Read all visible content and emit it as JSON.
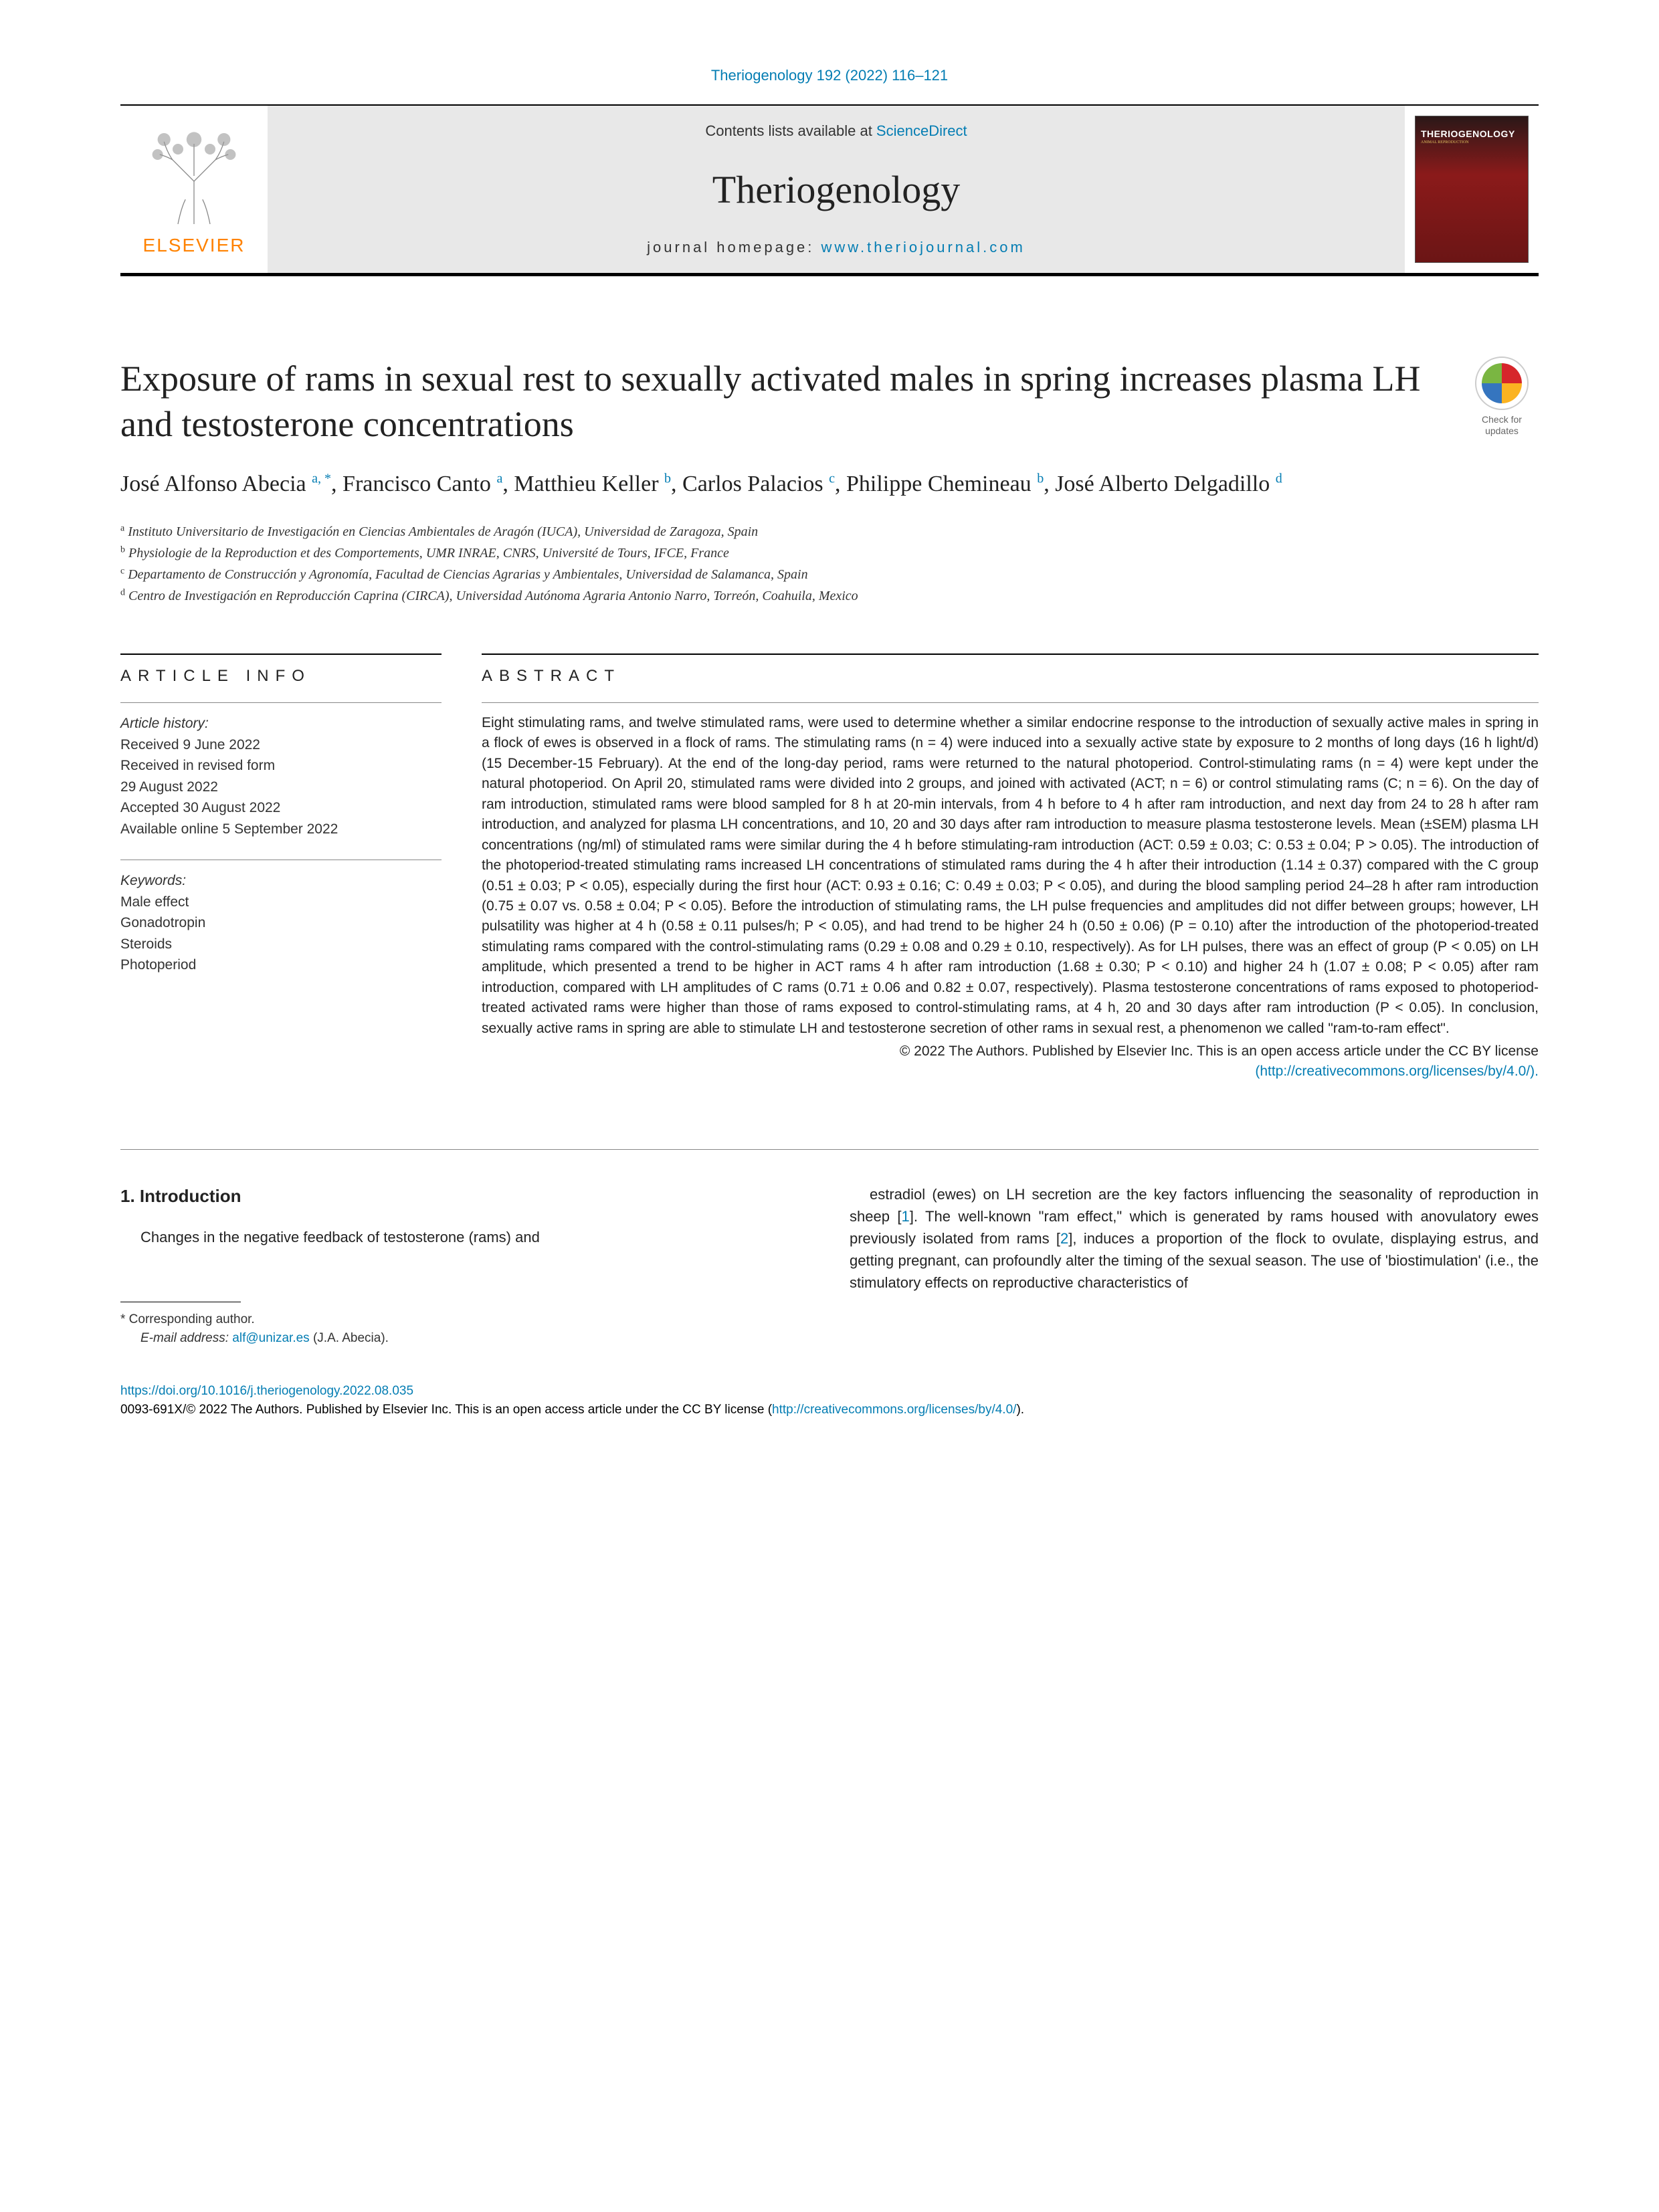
{
  "citation": "Theriogenology 192 (2022) 116–121",
  "header": {
    "contents_prefix": "Contents lists available at ",
    "contents_link": "ScienceDirect",
    "journal": "Theriogenology",
    "homepage_prefix": "journal homepage: ",
    "homepage_link": "www.theriojournal.com",
    "elsevier": "ELSEVIER",
    "cover_title": "THERIOGENOLOGY",
    "cover_sub": "ANIMAL REPRODUCTION"
  },
  "crossmark": "Check for updates",
  "title": "Exposure of rams in sexual rest to sexually activated males in spring increases plasma LH and testosterone concentrations",
  "authors": [
    {
      "name": "José Alfonso Abecia",
      "sup": "a, *"
    },
    {
      "name": "Francisco Canto",
      "sup": "a"
    },
    {
      "name": "Matthieu Keller",
      "sup": "b"
    },
    {
      "name": "Carlos Palacios",
      "sup": "c"
    },
    {
      "name": "Philippe Chemineau",
      "sup": "b"
    },
    {
      "name": "José Alberto Delgadillo",
      "sup": "d"
    }
  ],
  "affiliations": [
    {
      "sup": "a",
      "text": "Instituto Universitario de Investigación en Ciencias Ambientales de Aragón (IUCA), Universidad de Zaragoza, Spain"
    },
    {
      "sup": "b",
      "text": "Physiologie de la Reproduction et des Comportements, UMR INRAE, CNRS, Université de Tours, IFCE, France"
    },
    {
      "sup": "c",
      "text": "Departamento de Construcción y Agronomía, Facultad de Ciencias Agrarias y Ambientales, Universidad de Salamanca, Spain"
    },
    {
      "sup": "d",
      "text": "Centro de Investigación en Reproducción Caprina (CIRCA), Universidad Autónoma Agraria Antonio Narro, Torreón, Coahuila, Mexico"
    }
  ],
  "article_info": {
    "heading": "ARTICLE INFO",
    "history_label": "Article history:",
    "history": [
      "Received 9 June 2022",
      "Received in revised form",
      "29 August 2022",
      "Accepted 30 August 2022",
      "Available online 5 September 2022"
    ],
    "keywords_label": "Keywords:",
    "keywords": [
      "Male effect",
      "Gonadotropin",
      "Steroids",
      "Photoperiod"
    ]
  },
  "abstract": {
    "heading": "ABSTRACT",
    "text": "Eight stimulating rams, and twelve stimulated rams, were used to determine whether a similar endocrine response to the introduction of sexually active males in spring in a flock of ewes is observed in a flock of rams. The stimulating rams (n = 4) were induced into a sexually active state by exposure to 2 months of long days (16 h light/d) (15 December-15 February). At the end of the long-day period, rams were returned to the natural photoperiod. Control-stimulating rams (n = 4) were kept under the natural photoperiod. On April 20, stimulated rams were divided into 2 groups, and joined with activated (ACT; n = 6) or control stimulating rams (C; n = 6). On the day of ram introduction, stimulated rams were blood sampled for 8 h at 20-min intervals, from 4 h before to 4 h after ram introduction, and next day from 24 to 28 h after ram introduction, and analyzed for plasma LH concentrations, and 10, 20 and 30 days after ram introduction to measure plasma testosterone levels. Mean (±SEM) plasma LH concentrations (ng/ml) of stimulated rams were similar during the 4 h before stimulating-ram introduction (ACT: 0.59 ± 0.03; C: 0.53 ± 0.04; P > 0.05). The introduction of the photoperiod-treated stimulating rams increased LH concentrations of stimulated rams during the 4 h after their introduction (1.14 ± 0.37) compared with the C group (0.51 ± 0.03; P < 0.05), especially during the first hour (ACT: 0.93 ± 0.16; C: 0.49 ± 0.03; P < 0.05), and during the blood sampling period 24–28 h after ram introduction (0.75 ± 0.07 vs. 0.58 ± 0.04; P < 0.05). Before the introduction of stimulating rams, the LH pulse frequencies and amplitudes did not differ between groups; however, LH pulsatility was higher at 4 h (0.58 ± 0.11 pulses/h; P < 0.05), and had trend to be higher 24 h (0.50 ± 0.06) (P = 0.10) after the introduction of the photoperiod-treated stimulating rams compared with the control-stimulating rams (0.29 ± 0.08 and 0.29 ± 0.10, respectively). As for LH pulses, there was an effect of group (P < 0.05) on LH amplitude, which presented a trend to be higher in ACT rams 4 h after ram introduction (1.68 ± 0.30; P < 0.10) and higher 24 h (1.07 ± 0.08; P < 0.05) after ram introduction, compared with LH amplitudes of C rams (0.71 ± 0.06 and 0.82 ± 0.07, respectively). Plasma testosterone concentrations of rams exposed to photoperiod-treated activated rams were higher than those of rams exposed to control-stimulating rams, at 4 h, 20 and 30 days after ram introduction (P < 0.05). In conclusion, sexually active rams in spring are able to stimulate LH and testosterone secretion of other rams in sexual rest, a phenomenon we called \"ram-to-ram effect\".",
    "copyright": "© 2022 The Authors. Published by Elsevier Inc. This is an open access article under the CC BY license",
    "license_link": "(http://creativecommons.org/licenses/by/4.0/)."
  },
  "intro": {
    "heading": "1. Introduction",
    "col1": "Changes in the negative feedback of testosterone (rams) and",
    "col2_p1a": "estradiol (ewes) on LH secretion are the key factors influencing the seasonality of reproduction in sheep [",
    "col2_ref1": "1",
    "col2_p1b": "]. The well-known \"ram effect,\" which is generated by rams housed with anovulatory ewes previously isolated from rams [",
    "col2_ref2": "2",
    "col2_p1c": "], induces a proportion of the flock to ovulate, displaying estrus, and getting pregnant, can profoundly alter the timing of the sexual season. The use of 'biostimulation' (i.e., the stimulatory effects on reproductive characteristics of"
  },
  "footnotes": {
    "corr": "* Corresponding author.",
    "email_label": "E-mail address: ",
    "email": "alf@unizar.es",
    "email_suffix": " (J.A. Abecia)."
  },
  "footer": {
    "doi": "https://doi.org/10.1016/j.theriogenology.2022.08.035",
    "copyright_a": "0093-691X/© 2022 The Authors. Published by Elsevier Inc. This is an open access article under the CC BY license (",
    "copyright_link": "http://creativecommons.org/licenses/by/4.0/",
    "copyright_b": ")."
  },
  "colors": {
    "link": "#047db3",
    "elsevier": "#ff8200",
    "text": "#222222",
    "border": "#000000"
  }
}
